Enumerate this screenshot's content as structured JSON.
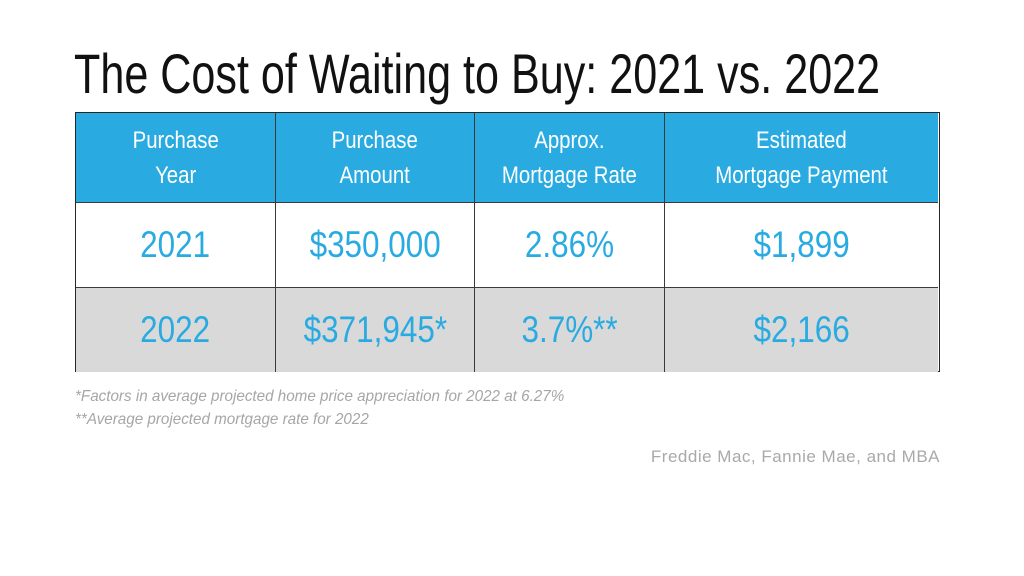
{
  "slide_title": "The Cost of Waiting to Buy: 2021 vs. 2022",
  "table": {
    "headers": [
      "Purchase\nYear",
      "Purchase\nAmount",
      "Approx.\nMortgage Rate",
      "Estimated\nMortgage Payment"
    ],
    "rows": [
      {
        "purchase_year": "2021",
        "purchase_amount": "$350,000",
        "mortgage_rate": "2.86%",
        "mortgage_payment": "$1,899"
      },
      {
        "purchase_year": "2022",
        "purchase_amount": "$371,945*",
        "mortgage_rate": "3.7%**",
        "mortgage_payment": "$2,166"
      }
    ]
  },
  "footnotes": [
    "*Factors in average projected home price appreciation for 2022 at 6.27%",
    "**Average  projected mortgage rate for 2022"
  ],
  "source_attribution": "Freddie Mac, Fannie Mae, and MBA",
  "colors": {
    "accent_blue": "#29abe2",
    "alt_row_gray": "#d9d9d9",
    "border_dark": "#262626",
    "footnote_gray": "#a6a6a6",
    "title_black": "#111111"
  },
  "chart_data": {
    "type": "table",
    "title": "The Cost of Waiting to Buy: 2021 vs. 2022",
    "columns": [
      "Purchase Year",
      "Purchase Amount",
      "Approx. Mortgage Rate",
      "Estimated Mortgage Payment"
    ],
    "rows": [
      [
        "2021",
        "$350,000",
        "2.86%",
        "$1,899"
      ],
      [
        "2022",
        "$371,945*",
        "3.7%**",
        "$2,166"
      ]
    ],
    "numeric": {
      "purchase_amount": [
        350000,
        371945
      ],
      "mortgage_rate_pct": [
        2.86,
        3.7
      ],
      "mortgage_payment": [
        1899,
        2166
      ],
      "home_price_appreciation_2022_pct": 6.27
    },
    "footnotes": [
      "*Factors in average projected home price appreciation for 2022 at 6.27%",
      "**Average  projected mortgage rate for 2022"
    ],
    "source": "Freddie Mac, Fannie Mae, and MBA",
    "style_notes": "header row blue bg white text; 2021 row white bg blue text; 2022 row gray bg blue text"
  }
}
